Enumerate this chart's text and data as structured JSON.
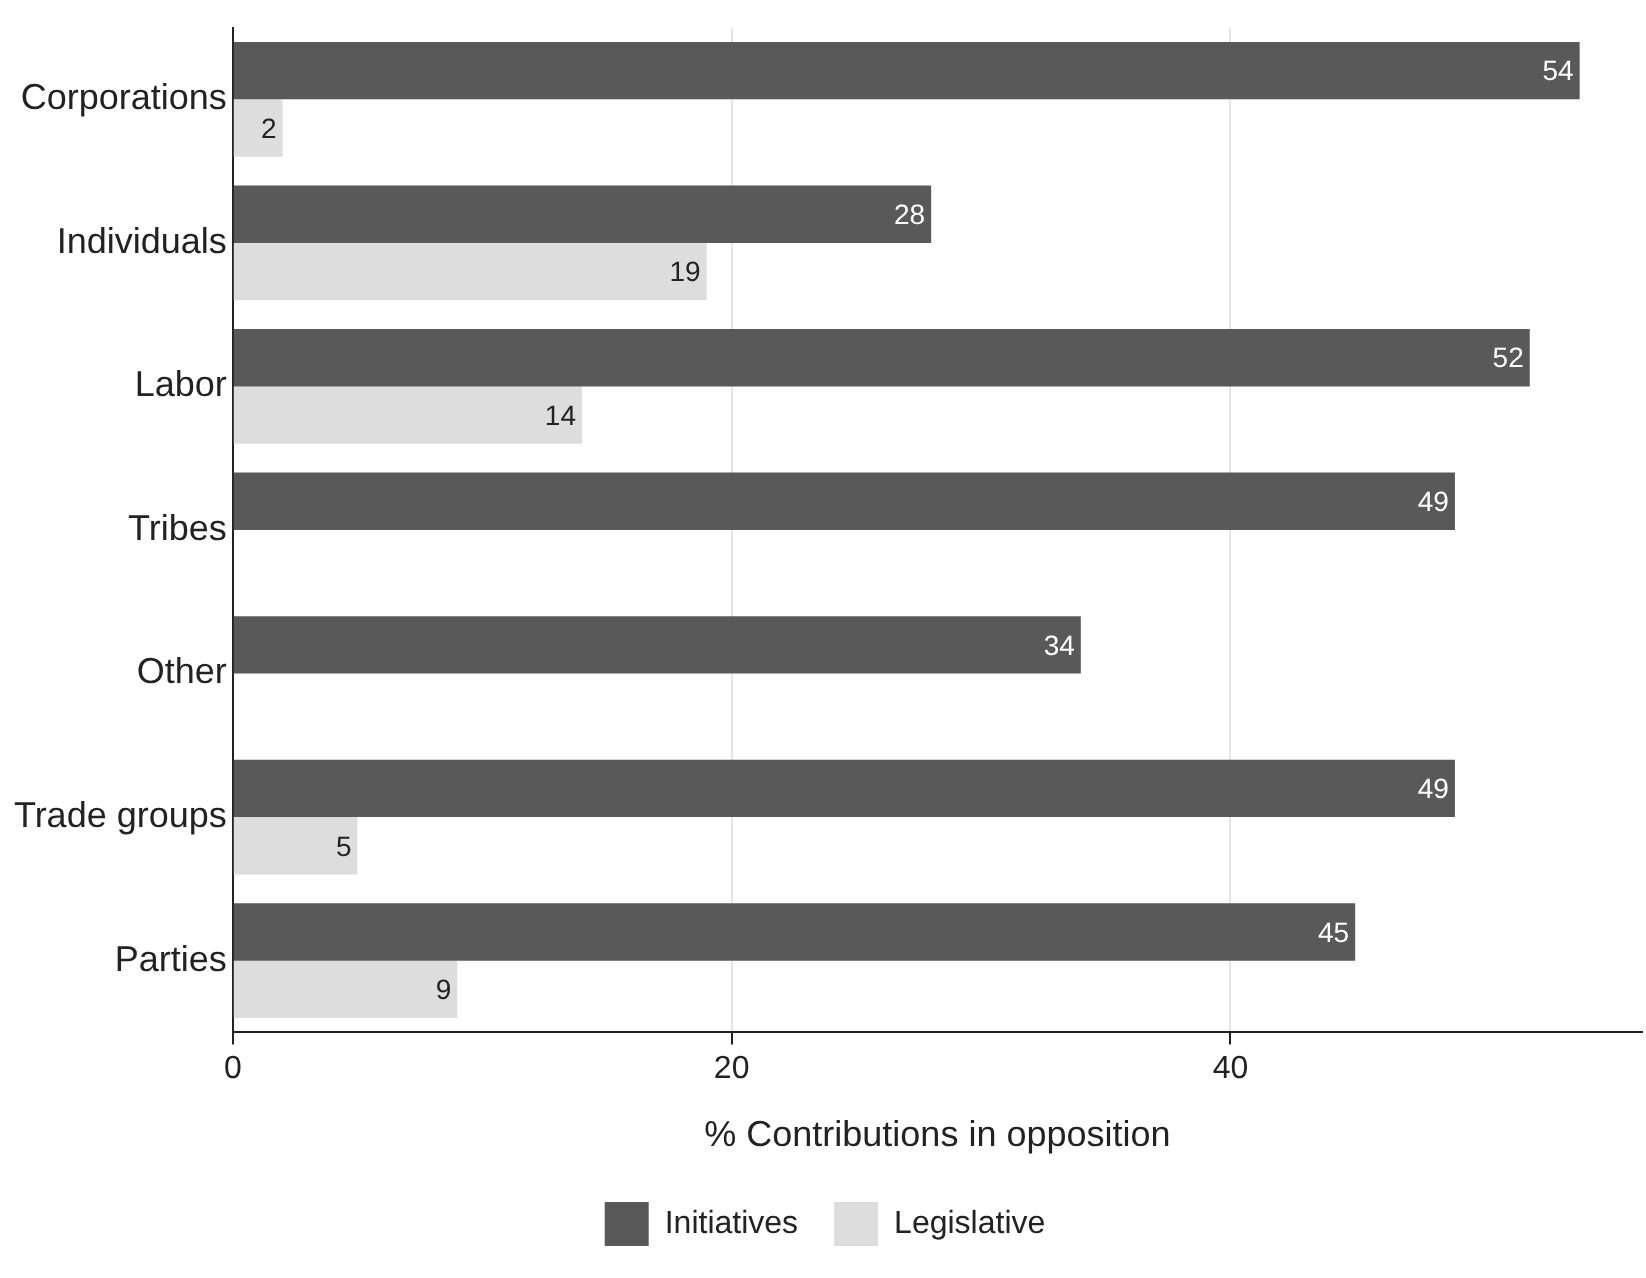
{
  "chart_data": {
    "type": "bar",
    "orientation": "horizontal",
    "xlabel": "% Contributions in opposition",
    "categories": [
      "Corporations",
      "Individuals",
      "Labor",
      "Tribes",
      "Other",
      "Trade groups",
      "Parties"
    ],
    "series": [
      {
        "name": "Initiatives",
        "color": "#595959",
        "values": [
          54,
          28,
          52,
          49,
          34,
          49,
          45
        ]
      },
      {
        "name": "Legislative",
        "color": "#dddddd",
        "values": [
          2,
          19,
          14,
          null,
          null,
          5,
          9
        ]
      }
    ],
    "xlim": [
      0,
      56.5
    ],
    "xticks": [
      0,
      20,
      40
    ],
    "grid": "x",
    "legend": "bottom",
    "data_labels": true
  }
}
